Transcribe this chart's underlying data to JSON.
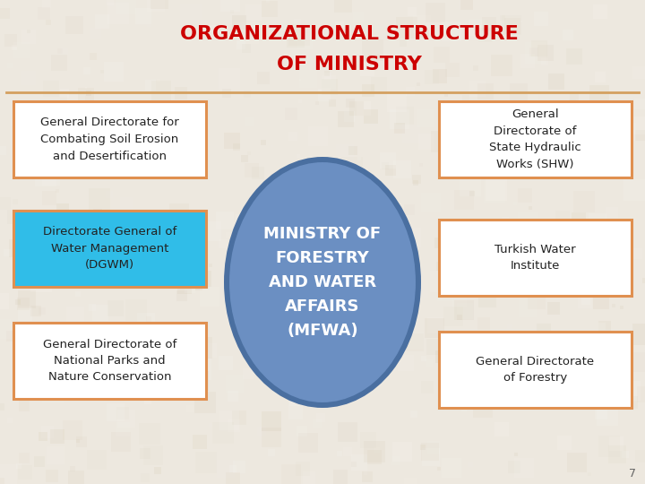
{
  "title_line1": "ORGANIZATIONAL STRUCTURE",
  "title_line2": "OF MINISTRY",
  "title_color": "#cc0000",
  "background_color": "#ede8df",
  "header_line_color": "#d4a060",
  "center_circle_text": "MINISTRY OF\nFORESTRY\nAND WATER\nAFFAIRS\n(MFWA)",
  "center_circle_color": "#6b8fc2",
  "center_circle_border": "#4a6fa0",
  "center_circle_text_color": "#ffffff",
  "left_boxes": [
    {
      "text": "General Directorate for\nCombating Soil Erosion\nand Desertification",
      "bg": "#ffffff",
      "border": "#e09050",
      "text_color": "#222222"
    },
    {
      "text": "Directorate General of\nWater Management\n(DGWM)",
      "bg": "#30bde8",
      "border": "#e09050",
      "text_color": "#222222"
    },
    {
      "text": "General Directorate of\nNational Parks and\nNature Conservation",
      "bg": "#ffffff",
      "border": "#e09050",
      "text_color": "#222222"
    }
  ],
  "right_boxes": [
    {
      "text": "General\nDirectorate of\nState Hydraulic\nWorks (SHW)",
      "bg": "#ffffff",
      "border": "#e09050",
      "text_color": "#222222"
    },
    {
      "text": "Turkish Water\nInstitute",
      "bg": "#ffffff",
      "border": "#e09050",
      "text_color": "#222222"
    },
    {
      "text": "General Directorate\nof Forestry",
      "bg": "#ffffff",
      "border": "#e09050",
      "text_color": "#222222"
    }
  ],
  "page_number": "7",
  "figsize": [
    7.2,
    5.4
  ],
  "dpi": 100
}
